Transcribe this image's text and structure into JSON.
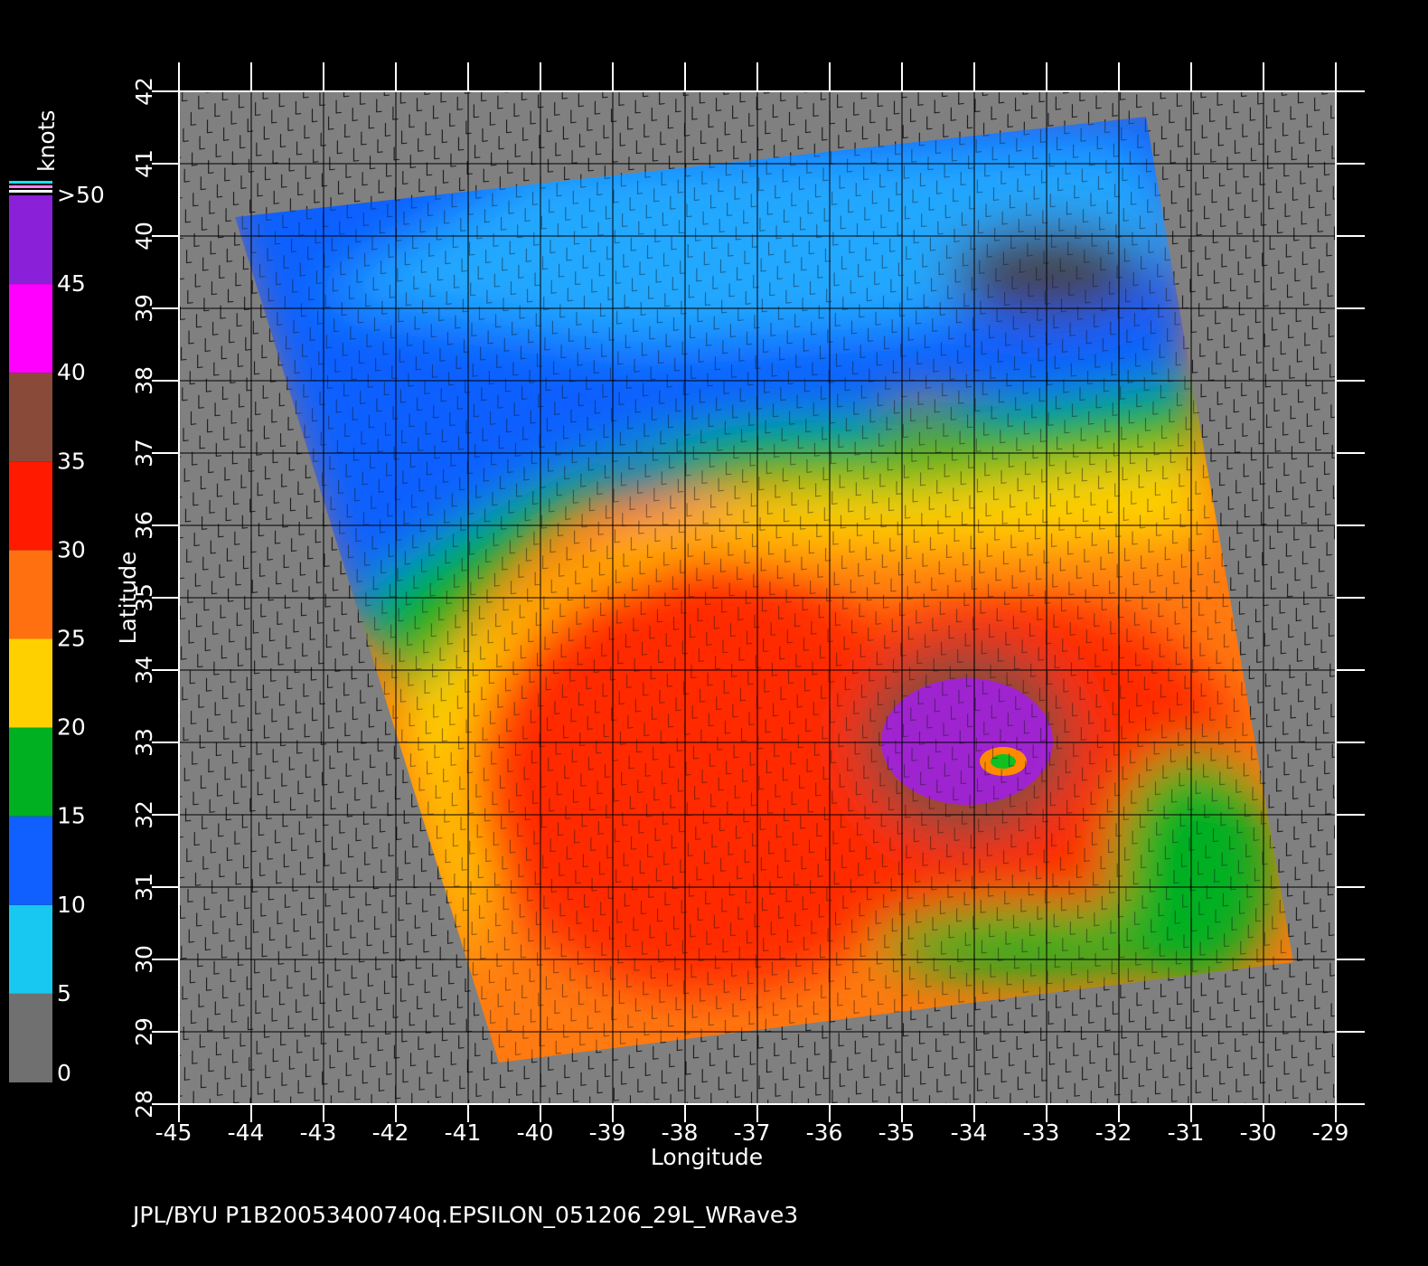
{
  "chart_data": {
    "type": "swath-map",
    "footer": "JPL/BYU  P1B20053400740q.EPSILON_051206_29L_WRave3",
    "x_label": "Longitude",
    "y_label": "Latitude",
    "xlim": [
      -45,
      -29
    ],
    "ylim": [
      28,
      42
    ],
    "xticks": [
      -45,
      -44,
      -43,
      -42,
      -41,
      -40,
      -39,
      -38,
      -37,
      -36,
      -35,
      -34,
      -33,
      -32,
      -31,
      -30,
      -29
    ],
    "yticks": [
      28,
      29,
      30,
      31,
      32,
      33,
      34,
      35,
      36,
      37,
      38,
      39,
      40,
      41,
      42
    ],
    "grid": true,
    "colorbar": {
      "title": "knots",
      "lim": [
        0,
        50
      ],
      "ticks": [
        0,
        5,
        10,
        15,
        20,
        25,
        30,
        35,
        40,
        45,
        {
          "value": 50,
          "label": ">50"
        }
      ],
      "colors": [
        "#707070",
        "#18c8f0",
        "#1060ff",
        "#00b020",
        "#ffd000",
        "#ff7010",
        "#ff1a00",
        "#8a4a3a",
        "#ff00ff",
        "#8a20d8"
      ]
    }
  }
}
